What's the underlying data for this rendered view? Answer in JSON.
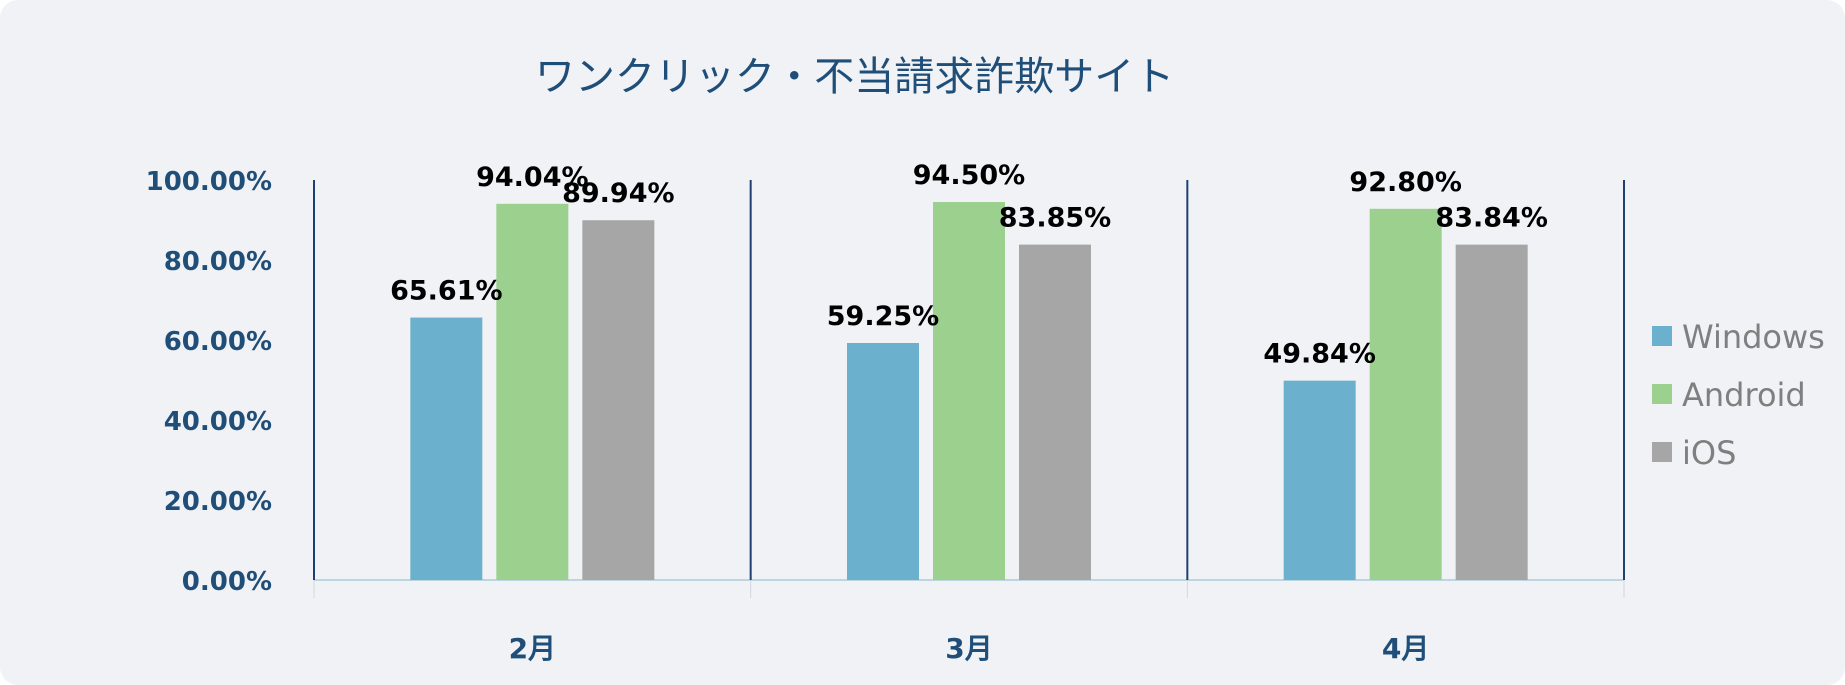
{
  "chart_data": {
    "type": "bar",
    "title": "ワンクリック・不当請求詐欺サイト",
    "categories": [
      "2月",
      "3月",
      "4月"
    ],
    "series": [
      {
        "name": "Windows",
        "color": "#6bb0cc",
        "values": [
          65.61,
          59.25,
          49.84
        ],
        "labels": [
          "65.61%",
          "59.25%",
          "49.84%"
        ]
      },
      {
        "name": "Android",
        "color": "#9bd08f",
        "values": [
          94.04,
          94.5,
          92.8
        ],
        "labels": [
          "94.04%",
          "94.50%",
          "92.80%"
        ]
      },
      {
        "name": "iOS",
        "color": "#a6a6a6",
        "values": [
          89.94,
          83.85,
          83.84
        ],
        "labels": [
          "89.94%",
          "83.85%",
          "83.84%"
        ]
      }
    ],
    "yticks": [
      "0.00%",
      "20.00%",
      "40.00%",
      "60.00%",
      "80.00%",
      "100.00%"
    ],
    "ylim": [
      0,
      100
    ],
    "legend_position": "right",
    "grid": false,
    "axis_color": "#1f3f73"
  }
}
